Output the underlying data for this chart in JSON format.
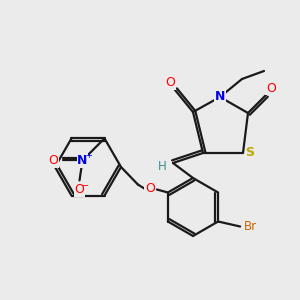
{
  "background_color": "#ebebeb",
  "bond_color": "#1a1a1a",
  "atom_colors": {
    "O": "#ff0000",
    "N": "#0000ee",
    "S": "#bbaa00",
    "Br": "#cc6600",
    "H": "#3a9090",
    "C": "#1a1a1a"
  },
  "lw": 1.6,
  "dbl_off": 2.8
}
